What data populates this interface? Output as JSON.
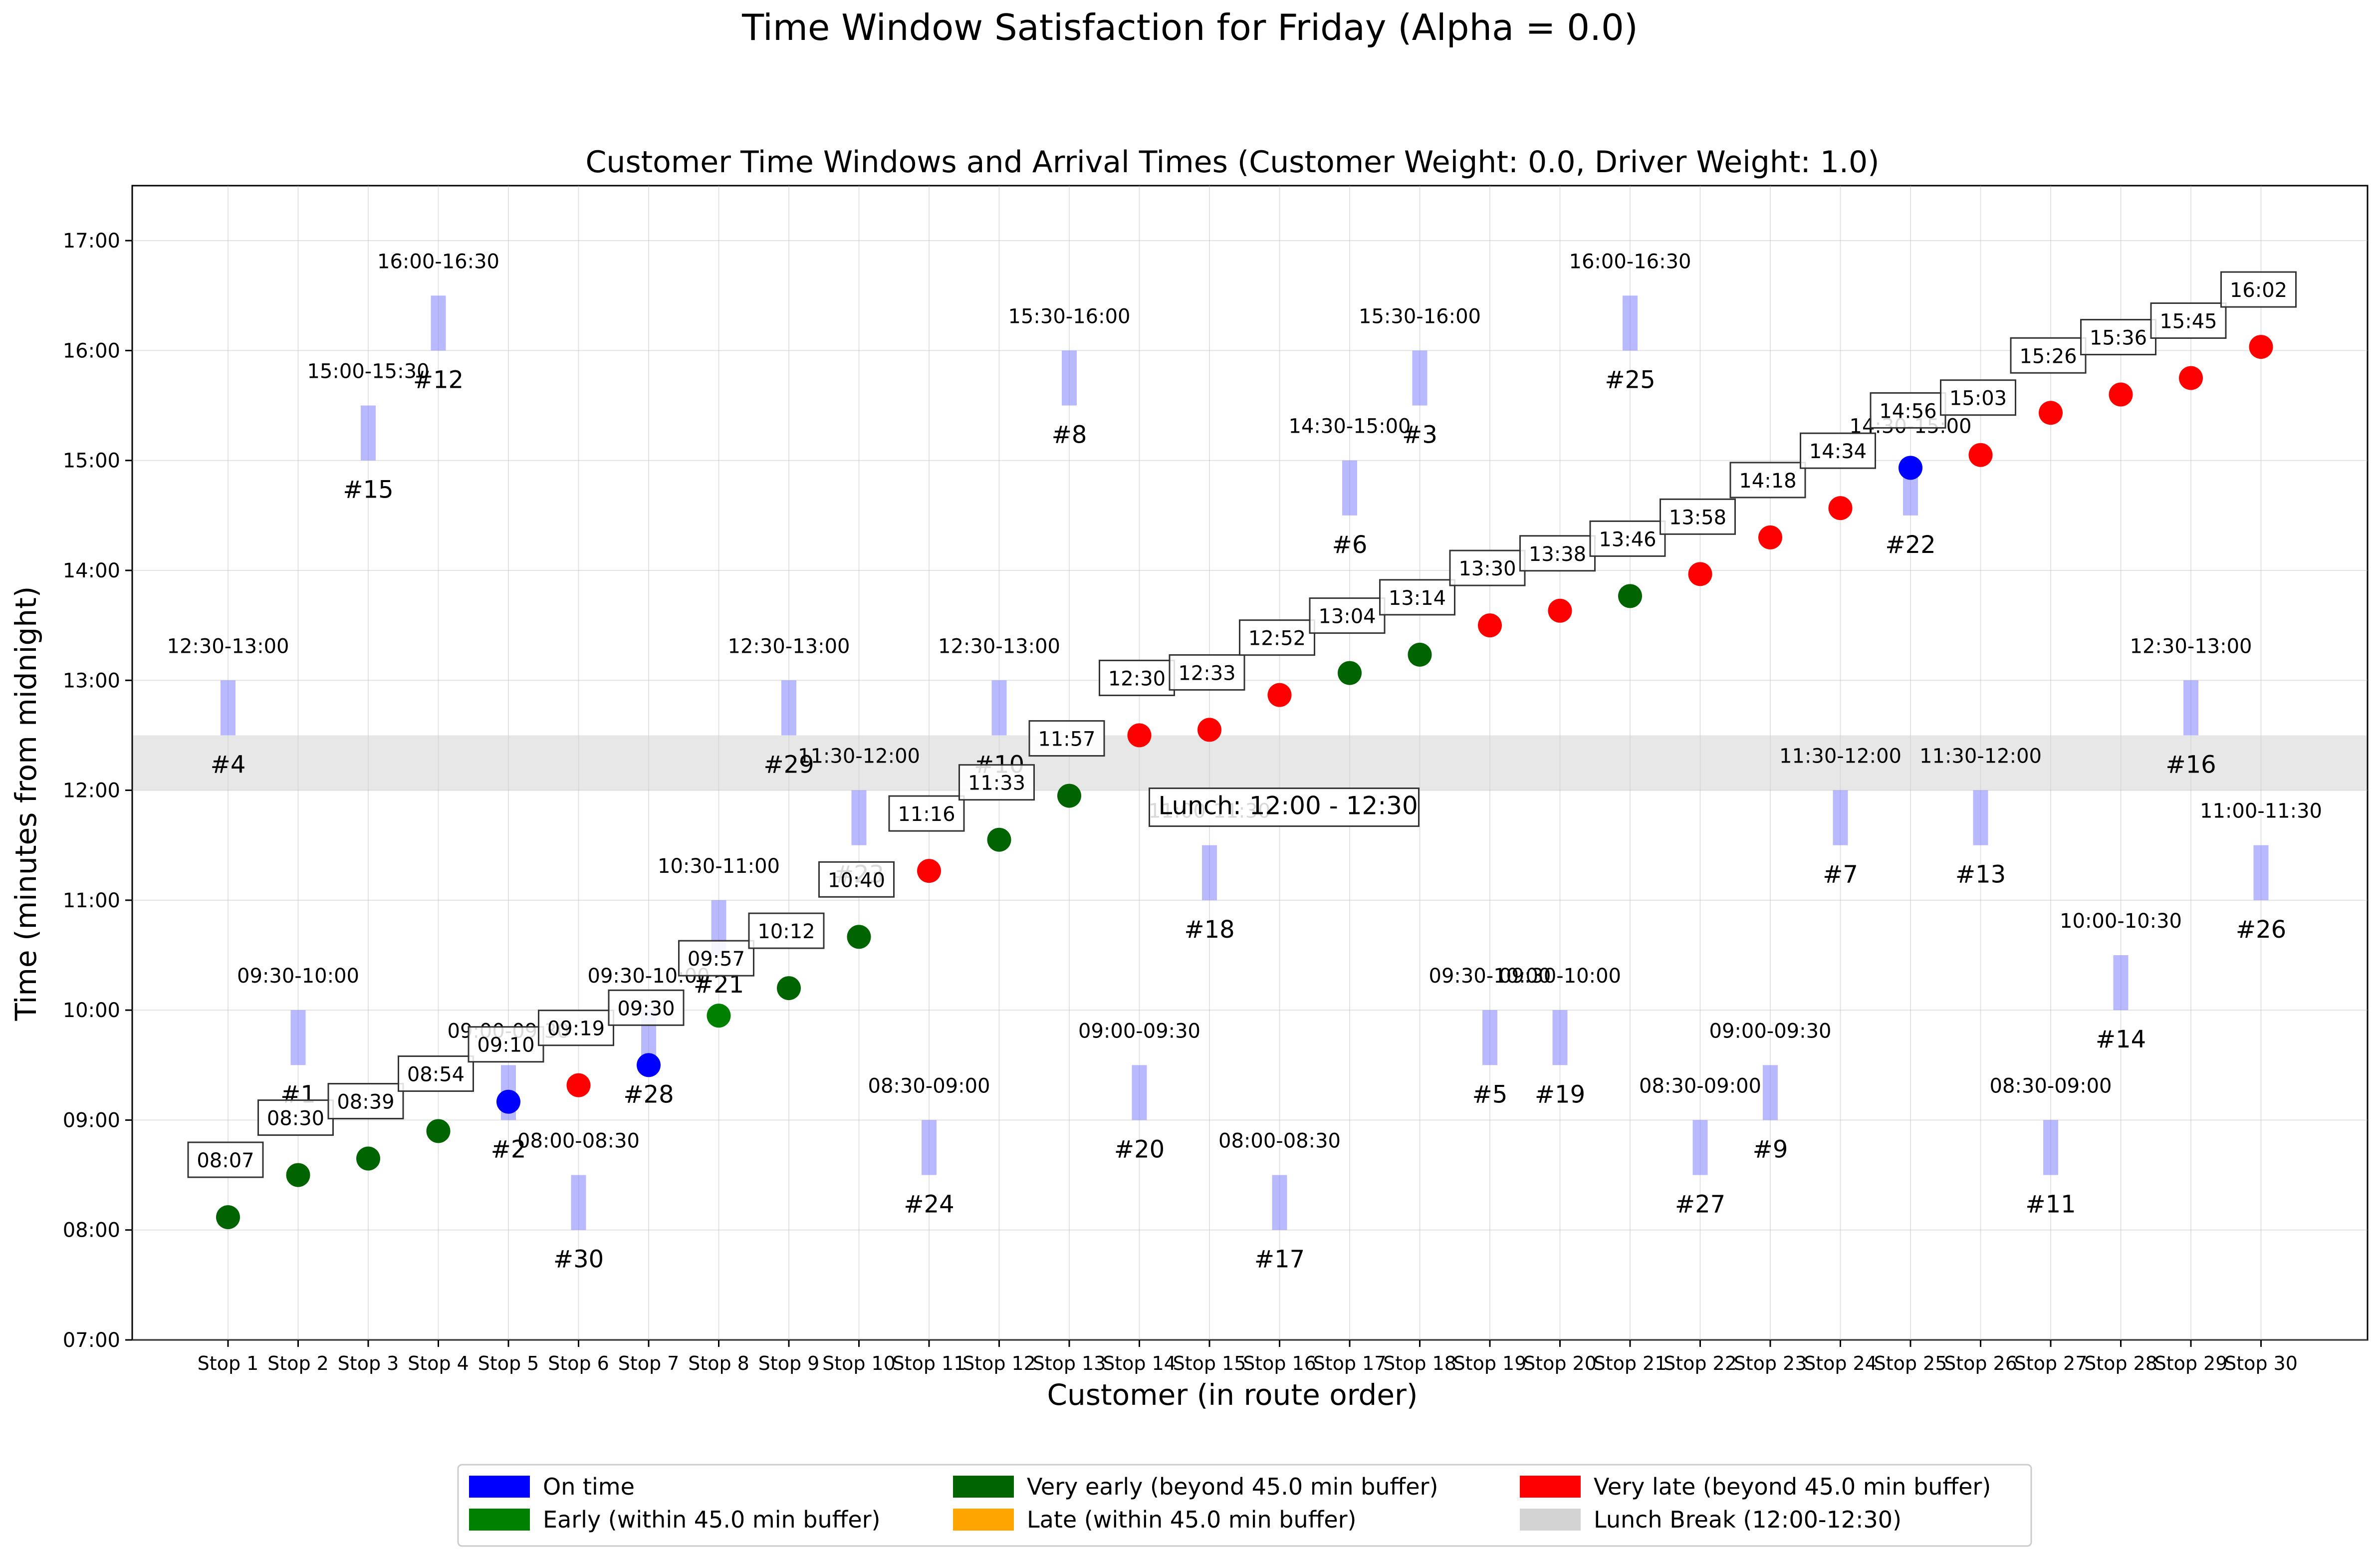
{
  "chart_data": {
    "type": "scatter",
    "suptitle": "Time Window Satisfaction for Friday (Alpha = 0.0)",
    "title": "Customer Time Windows and Arrival Times (Customer Weight: 0.0, Driver Weight: 1.0)",
    "xlabel": "Customer (in route order)",
    "ylabel": "Time (minutes from midnight)",
    "ylim": [
      "07:00",
      "17:30"
    ],
    "y_ticks": [
      "07:00",
      "08:00",
      "09:00",
      "10:00",
      "11:00",
      "12:00",
      "13:00",
      "14:00",
      "15:00",
      "16:00",
      "17:00"
    ],
    "grid": true,
    "lunch_break": {
      "start": "12:00",
      "end": "12:30",
      "label": "Lunch: 12:00 - 12:30"
    },
    "colors": {
      "on_time": "#0000ff",
      "early": "#008000",
      "very_early": "#006400",
      "late": "#ffa500",
      "very_late": "#ff0000",
      "lunch": "#d3d3d3",
      "window": "#8080ff"
    },
    "legend_position": "bottom-center",
    "legend": [
      {
        "key": "on_time",
        "label": "On time"
      },
      {
        "key": "early",
        "label": "Early (within 45.0 min buffer)"
      },
      {
        "key": "very_early",
        "label": "Very early (beyond 45.0 min buffer)"
      },
      {
        "key": "late",
        "label": "Late (within 45.0 min buffer)"
      },
      {
        "key": "very_late",
        "label": "Very late (beyond 45.0 min buffer)"
      },
      {
        "key": "lunch",
        "label": "Lunch Break (12:00-12:30)"
      }
    ],
    "stops": [
      {
        "stop": "Stop 1",
        "customer": "#4",
        "window": "12:30-13:00",
        "arrival": "08:07",
        "status": "very_early"
      },
      {
        "stop": "Stop 2",
        "customer": "#1",
        "window": "09:30-10:00",
        "arrival": "08:30",
        "status": "very_early"
      },
      {
        "stop": "Stop 3",
        "customer": "#15",
        "window": "15:00-15:30",
        "arrival": "08:39",
        "status": "very_early"
      },
      {
        "stop": "Stop 4",
        "customer": "#12",
        "window": "16:00-16:30",
        "arrival": "08:54",
        "status": "very_early"
      },
      {
        "stop": "Stop 5",
        "customer": "#2",
        "window": "09:00-09:30",
        "arrival": "09:10",
        "status": "on_time"
      },
      {
        "stop": "Stop 6",
        "customer": "#30",
        "window": "08:00-08:30",
        "arrival": "09:19",
        "status": "very_late"
      },
      {
        "stop": "Stop 7",
        "customer": "#28",
        "window": "09:30-10:00",
        "arrival": "09:30",
        "status": "on_time"
      },
      {
        "stop": "Stop 8",
        "customer": "#21",
        "window": "10:30-11:00",
        "arrival": "09:57",
        "status": "early"
      },
      {
        "stop": "Stop 9",
        "customer": "#29",
        "window": "12:30-13:00",
        "arrival": "10:12",
        "status": "very_early"
      },
      {
        "stop": "Stop 10",
        "customer": "#23",
        "window": "11:30-12:00",
        "arrival": "10:40",
        "status": "very_early"
      },
      {
        "stop": "Stop 11",
        "customer": "#24",
        "window": "08:30-09:00",
        "arrival": "11:16",
        "status": "very_late"
      },
      {
        "stop": "Stop 12",
        "customer": "#10",
        "window": "12:30-13:00",
        "arrival": "11:33",
        "status": "very_early"
      },
      {
        "stop": "Stop 13",
        "customer": "#8",
        "window": "15:30-16:00",
        "arrival": "11:57",
        "status": "very_early"
      },
      {
        "stop": "Stop 14",
        "customer": "#20",
        "window": "09:00-09:30",
        "arrival": "12:30",
        "status": "very_late"
      },
      {
        "stop": "Stop 15",
        "customer": "#18",
        "window": "11:00-11:30",
        "arrival": "12:33",
        "status": "very_late"
      },
      {
        "stop": "Stop 16",
        "customer": "#17",
        "window": "08:00-08:30",
        "arrival": "12:52",
        "status": "very_late"
      },
      {
        "stop": "Stop 17",
        "customer": "#6",
        "window": "14:30-15:00",
        "arrival": "13:04",
        "status": "very_early"
      },
      {
        "stop": "Stop 18",
        "customer": "#3",
        "window": "15:30-16:00",
        "arrival": "13:14",
        "status": "very_early"
      },
      {
        "stop": "Stop 19",
        "customer": "#5",
        "window": "09:30-10:00",
        "arrival": "13:30",
        "status": "very_late"
      },
      {
        "stop": "Stop 20",
        "customer": "#19",
        "window": "09:30-10:00",
        "arrival": "13:38",
        "status": "very_late"
      },
      {
        "stop": "Stop 21",
        "customer": "#25",
        "window": "16:00-16:30",
        "arrival": "13:46",
        "status": "very_early"
      },
      {
        "stop": "Stop 22",
        "customer": "#27",
        "window": "08:30-09:00",
        "arrival": "13:58",
        "status": "very_late"
      },
      {
        "stop": "Stop 23",
        "customer": "#9",
        "window": "09:00-09:30",
        "arrival": "14:18",
        "status": "very_late"
      },
      {
        "stop": "Stop 24",
        "customer": "#7",
        "window": "11:30-12:00",
        "arrival": "14:34",
        "status": "very_late"
      },
      {
        "stop": "Stop 25",
        "customer": "#22",
        "window": "14:30-15:00",
        "arrival": "14:56",
        "status": "on_time"
      },
      {
        "stop": "Stop 26",
        "customer": "#13",
        "window": "11:30-12:00",
        "arrival": "15:03",
        "status": "very_late"
      },
      {
        "stop": "Stop 27",
        "customer": "#11",
        "window": "08:30-09:00",
        "arrival": "15:26",
        "status": "very_late"
      },
      {
        "stop": "Stop 28",
        "customer": "#14",
        "window": "10:00-10:30",
        "arrival": "15:36",
        "status": "very_late"
      },
      {
        "stop": "Stop 29",
        "customer": "#16",
        "window": "12:30-13:00",
        "arrival": "15:45",
        "status": "very_late"
      },
      {
        "stop": "Stop 30",
        "customer": "#26",
        "window": "11:00-11:30",
        "arrival": "16:02",
        "status": "very_late"
      }
    ]
  }
}
